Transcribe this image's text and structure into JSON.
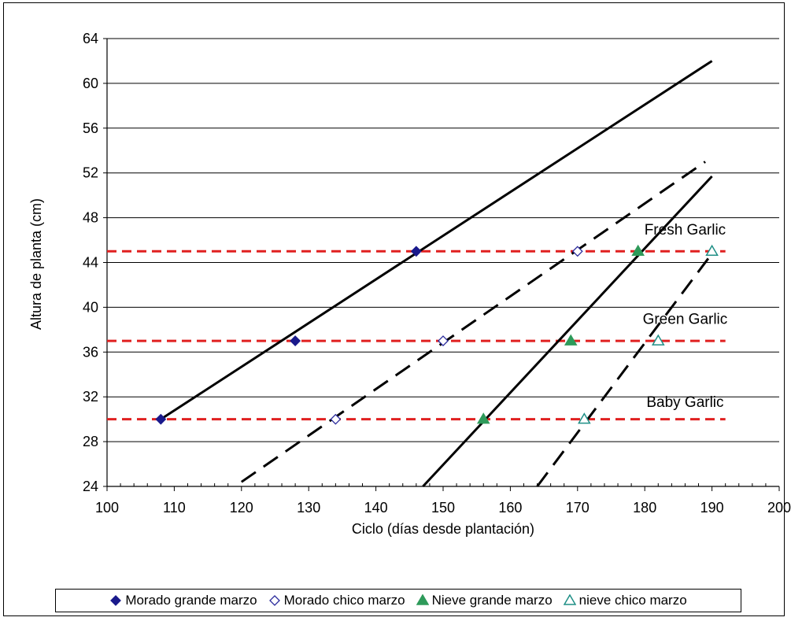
{
  "chart_data": {
    "type": "scatter",
    "title": "",
    "xlabel": "Ciclo (días desde plantación)",
    "ylabel": "Altura de planta (cm)",
    "xlim": [
      100,
      200
    ],
    "ylim": [
      24,
      64
    ],
    "xticks": [
      100,
      110,
      120,
      130,
      140,
      150,
      160,
      170,
      180,
      190,
      200
    ],
    "yticks": [
      24,
      28,
      32,
      36,
      40,
      44,
      48,
      52,
      56,
      60,
      64
    ],
    "grid": "horizontal",
    "legend_position": "bottom",
    "series": [
      {
        "name": "Morado grande marzo",
        "marker": "filled-diamond",
        "color": "#1a1a8c",
        "points": [
          [
            108,
            30
          ],
          [
            128,
            37
          ],
          [
            146,
            45
          ]
        ]
      },
      {
        "name": "Morado chico marzo",
        "marker": "open-diamond",
        "color": "#2a2a9c",
        "points": [
          [
            134,
            30
          ],
          [
            150,
            37
          ],
          [
            170,
            45
          ]
        ]
      },
      {
        "name": "Nieve grande marzo",
        "marker": "filled-triangle",
        "color": "#2e9a5a",
        "points": [
          [
            156,
            30
          ],
          [
            169,
            37
          ],
          [
            179,
            45
          ]
        ]
      },
      {
        "name": "nieve chico marzo",
        "marker": "open-triangle",
        "color": "#1f8f86",
        "points": [
          [
            171,
            30
          ],
          [
            182,
            37
          ],
          [
            190,
            45
          ]
        ]
      }
    ],
    "trendlines": [
      {
        "style": "solid",
        "color": "#000000",
        "from": [
          108,
          30
        ],
        "to": [
          190,
          62
        ]
      },
      {
        "style": "dashed",
        "color": "#000000",
        "from": [
          120,
          24.4
        ],
        "to": [
          189,
          53
        ]
      },
      {
        "style": "solid",
        "color": "#000000",
        "from": [
          147,
          24
        ],
        "to": [
          190,
          51.7
        ]
      },
      {
        "style": "dashed",
        "color": "#000000",
        "from": [
          164,
          24
        ],
        "to": [
          190,
          44.8
        ]
      }
    ],
    "reference_lines": [
      {
        "y": 45,
        "x_from": 100,
        "x_to": 192,
        "color": "#e02020",
        "style": "dashed",
        "label": "Fresh Garlic",
        "label_x": 186,
        "label_y": 46.5
      },
      {
        "y": 37,
        "x_from": 100,
        "x_to": 192,
        "color": "#e02020",
        "style": "dashed",
        "label": "Green Garlic",
        "label_x": 186,
        "label_y": 38.5
      },
      {
        "y": 30,
        "x_from": 100,
        "x_to": 192,
        "color": "#e02020",
        "style": "dashed",
        "label": "Baby Garlic",
        "label_x": 186,
        "label_y": 31.1
      }
    ]
  }
}
